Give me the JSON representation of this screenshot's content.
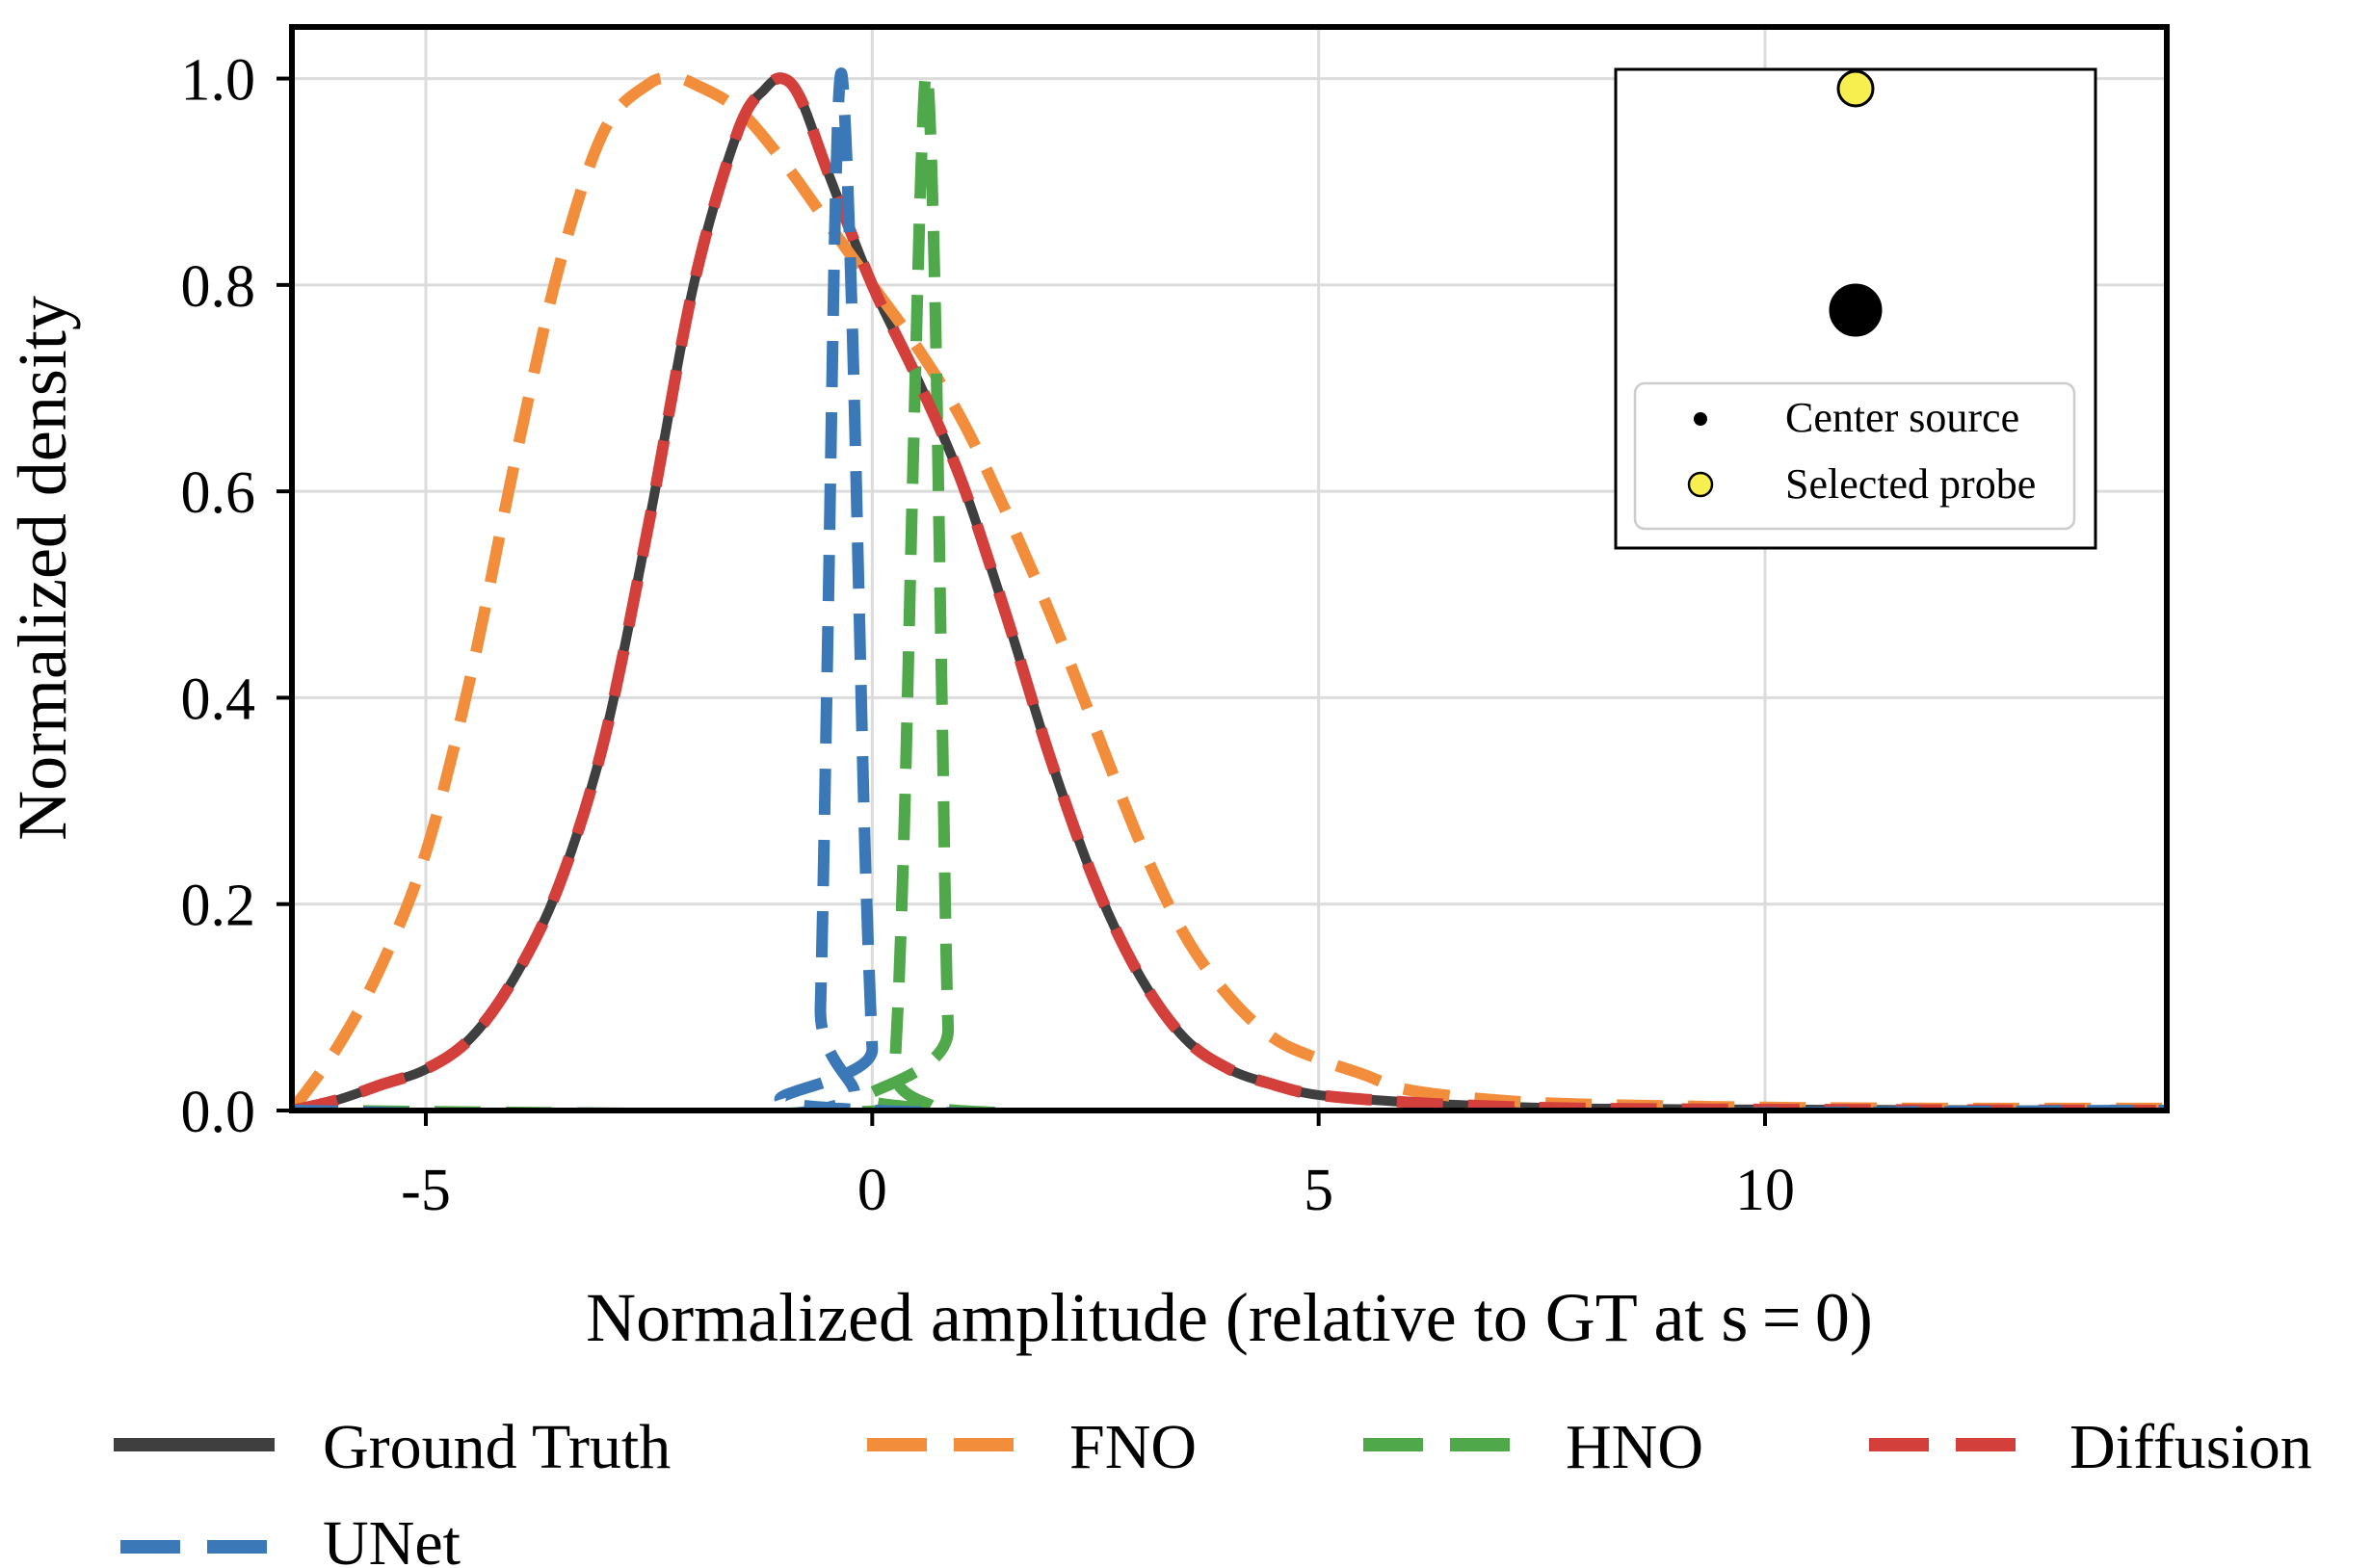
{
  "chart_data": {
    "type": "line",
    "title": "",
    "xlabel": "Normalized amplitude (relative to GT at s = 0)",
    "ylabel": "Normalized density",
    "xlim": [
      -6.5,
      14.5
    ],
    "ylim": [
      0,
      1.05
    ],
    "xticks": [
      -5,
      0,
      5,
      10
    ],
    "xtick_labels": [
      "-5",
      "0",
      "5",
      "10"
    ],
    "yticks": [
      0,
      0.2,
      0.4,
      0.6,
      0.8,
      1.0
    ],
    "ytick_labels": [
      "0.0",
      "0.2",
      "0.4",
      "0.6",
      "0.8",
      "1.0"
    ],
    "grid": true,
    "legend_placement": "below plot",
    "series": [
      {
        "name": "Ground Truth",
        "color": "#3f3f3f",
        "style": "solid",
        "x": [
          -6.5,
          -6.0,
          -5.5,
          -5.0,
          -4.5,
          -4.0,
          -3.5,
          -3.0,
          -2.5,
          -2.0,
          -1.5,
          -1.2,
          -1.0,
          -0.8,
          -0.5,
          0.0,
          0.5,
          1.0,
          1.5,
          2.0,
          2.5,
          3.0,
          3.5,
          4.0,
          4.5,
          5.0,
          6.0,
          7.0,
          8.0,
          10.0,
          12.0,
          14.5
        ],
        "y": [
          0.0,
          0.01,
          0.025,
          0.04,
          0.07,
          0.13,
          0.22,
          0.36,
          0.57,
          0.8,
          0.95,
          0.99,
          1.0,
          0.98,
          0.91,
          0.8,
          0.71,
          0.61,
          0.48,
          0.34,
          0.22,
          0.13,
          0.07,
          0.04,
          0.025,
          0.015,
          0.008,
          0.004,
          0.002,
          0.001,
          0.0005,
          0.0
        ]
      },
      {
        "name": "FNO",
        "color": "#f28e3b",
        "style": "dashed",
        "x": [
          -6.5,
          -6.0,
          -5.5,
          -5.0,
          -4.5,
          -4.0,
          -3.5,
          -3.0,
          -2.5,
          -2.2,
          -2.0,
          -1.5,
          -1.0,
          -0.5,
          0.0,
          0.5,
          1.0,
          1.5,
          2.0,
          2.5,
          3.0,
          3.5,
          4.0,
          4.5,
          5.0,
          5.5,
          6.0,
          7.0,
          8.0,
          10.0,
          12.0,
          14.5
        ],
        "y": [
          0.0,
          0.06,
          0.14,
          0.25,
          0.42,
          0.63,
          0.82,
          0.95,
          0.995,
          1.0,
          0.995,
          0.97,
          0.92,
          0.86,
          0.8,
          0.74,
          0.67,
          0.58,
          0.48,
          0.37,
          0.26,
          0.17,
          0.11,
          0.07,
          0.05,
          0.035,
          0.02,
          0.01,
          0.006,
          0.003,
          0.002,
          0.002
        ]
      },
      {
        "name": "HNO",
        "color": "#4fa84a",
        "style": "dashed",
        "x": [
          -6.5,
          0.15,
          0.25,
          0.35,
          0.45,
          0.55,
          0.62,
          0.7,
          0.78,
          0.85,
          0.95,
          14.5
        ],
        "y": [
          0.0,
          0.0,
          0.04,
          0.25,
          0.6,
          0.92,
          1.0,
          0.8,
          0.4,
          0.08,
          0.0,
          0.0
        ]
      },
      {
        "name": "Diffusion",
        "color": "#d33f3a",
        "style": "dashed",
        "x": [
          -6.5,
          -6.0,
          -5.5,
          -5.0,
          -4.5,
          -4.0,
          -3.5,
          -3.0,
          -2.5,
          -2.0,
          -1.5,
          -1.2,
          -1.0,
          -0.8,
          -0.5,
          0.0,
          0.5,
          1.0,
          1.5,
          2.0,
          2.5,
          3.0,
          3.5,
          4.0,
          4.5,
          5.0,
          6.0,
          7.0,
          8.0,
          10.0,
          12.0,
          14.5
        ],
        "y": [
          0.0,
          0.01,
          0.025,
          0.04,
          0.07,
          0.13,
          0.22,
          0.36,
          0.57,
          0.8,
          0.95,
          0.99,
          1.0,
          0.98,
          0.91,
          0.8,
          0.71,
          0.61,
          0.48,
          0.34,
          0.22,
          0.13,
          0.07,
          0.04,
          0.025,
          0.015,
          0.008,
          0.004,
          0.002,
          0.001,
          0.0005,
          0.0
        ]
      },
      {
        "name": "UNet",
        "color": "#3b78b8",
        "style": "dashed",
        "x": [
          -6.5,
          -0.65,
          -0.58,
          -0.5,
          -0.42,
          -0.36,
          -0.3,
          -0.22,
          -0.15,
          -0.08,
          0.0,
          0.05,
          14.5
        ],
        "y": [
          0.0,
          0.0,
          0.1,
          0.45,
          0.85,
          1.0,
          0.95,
          0.75,
          0.5,
          0.25,
          0.06,
          0.0,
          0.0
        ]
      }
    ],
    "inset": {
      "legend": [
        {
          "label": "Center source",
          "color": "#000000"
        },
        {
          "label": "Selected probe",
          "color": "#f7ef4f"
        }
      ],
      "points": [
        {
          "name": "Selected probe",
          "color": "#f7ef4f",
          "size": "small"
        },
        {
          "name": "Center source",
          "color": "#000000",
          "size": "large"
        }
      ]
    }
  }
}
